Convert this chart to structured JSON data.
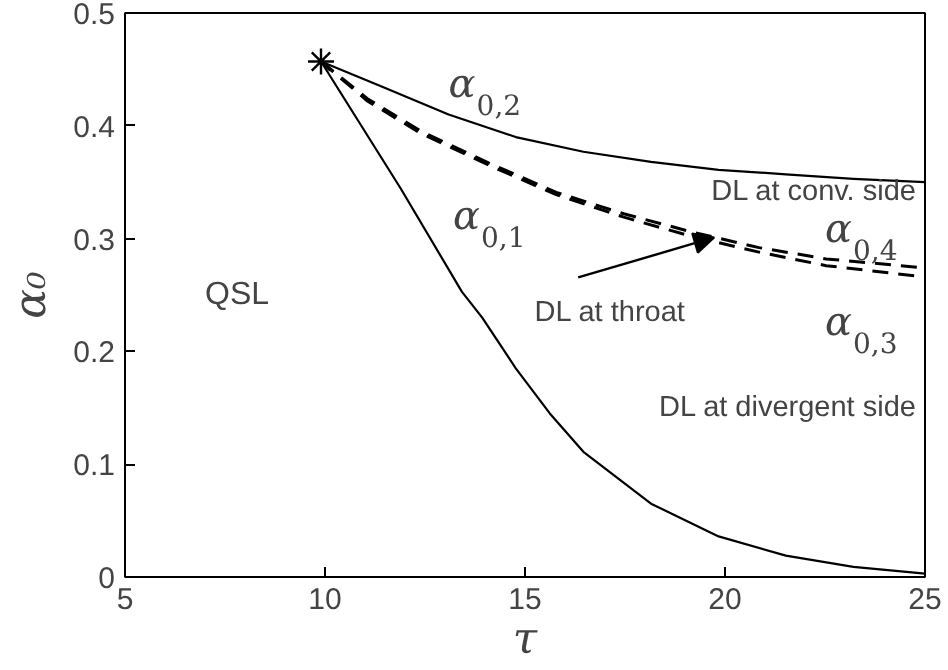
{
  "chart_data": {
    "type": "line",
    "xlabel": "τ",
    "ylabel": "α₀",
    "xlim": [
      5,
      25
    ],
    "ylim": [
      0,
      0.5
    ],
    "xticks": [
      5,
      10,
      15,
      20,
      25
    ],
    "yticks": [
      0,
      0.1,
      0.2,
      0.3,
      0.4,
      0.5
    ],
    "grid": false,
    "series": [
      {
        "name": "α0,2",
        "color": "#000000",
        "line_style": "solid",
        "x": [
          9.9,
          11.4,
          13.09,
          14.77,
          16.46,
          18.15,
          19.84,
          21.52,
          23.21,
          25
        ],
        "values": [
          0.457,
          0.435,
          0.41,
          0.39,
          0.377,
          0.368,
          0.361,
          0.357,
          0.353,
          0.35
        ]
      },
      {
        "name": "α0,4",
        "color": "#000000",
        "line_style": "dashed",
        "x": [
          9.9,
          11.06,
          12.41,
          14.1,
          15.78,
          17.47,
          19.16,
          20.85,
          22.53,
          25
        ],
        "values": [
          0.457,
          0.424,
          0.395,
          0.367,
          0.341,
          0.322,
          0.306,
          0.292,
          0.282,
          0.274
        ]
      },
      {
        "name": "α0,3",
        "color": "#000000",
        "line_style": "dashed",
        "x": [
          9.9,
          11.06,
          12.41,
          14.1,
          15.78,
          17.47,
          19.16,
          20.85,
          22.53,
          25
        ],
        "values": [
          0.457,
          0.422,
          0.393,
          0.365,
          0.339,
          0.319,
          0.302,
          0.288,
          0.276,
          0.266
        ]
      },
      {
        "color": "#000000",
        "line_style": "solid",
        "x": [
          9.9,
          11.9,
          13.42,
          13.93,
          14.77,
          15.62,
          16.46,
          18.15,
          19.84,
          21.52,
          23.21,
          25
        ],
        "values": [
          0.457,
          0.344,
          0.253,
          0.23,
          0.185,
          0.145,
          0.111,
          0.065,
          0.036,
          0.019,
          0.009,
          0.003
        ]
      },
      {
        "type": "scatter",
        "marker": "cross",
        "color": "#000000",
        "x": [
          9.9
        ],
        "values": [
          0.457
        ]
      }
    ],
    "annotations": [
      "QSL",
      "DL at conv. side",
      {
        "text": "DL at throat",
        "x": 19.73,
        "y": 0.301
      },
      "DL at divergent side",
      "α0,1"
    ]
  }
}
